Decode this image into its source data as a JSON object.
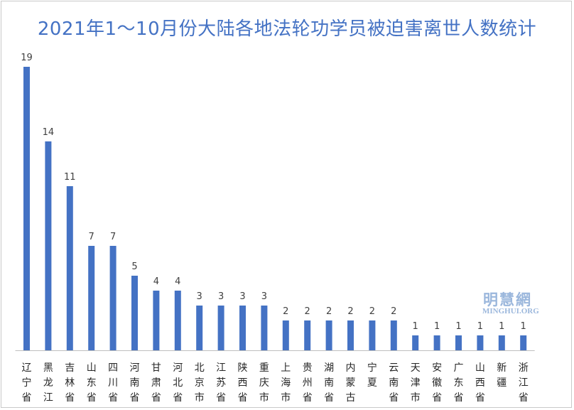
{
  "chart_data": {
    "type": "bar",
    "title": "2021年1～10月份大陆各地法轮功学员被迫害离世人数统计",
    "categories": [
      "辽宁省",
      "黑龙江",
      "吉林省",
      "山东省",
      "四川省",
      "河南省",
      "甘肃省",
      "河北省",
      "北京市",
      "江苏省",
      "陕西省",
      "重庆市",
      "上海市",
      "贵州省",
      "湖南省",
      "内蒙古",
      "宁夏",
      "云南省",
      "天津市",
      "安徽省",
      "广东省",
      "山西省",
      "新疆",
      "浙江省"
    ],
    "values": [
      19,
      14,
      11,
      7,
      7,
      5,
      4,
      4,
      3,
      3,
      3,
      3,
      2,
      2,
      2,
      2,
      2,
      2,
      1,
      1,
      1,
      1,
      1,
      1
    ],
    "ylim": [
      0,
      19
    ],
    "grid": false,
    "legend": "none",
    "bar_color": "#4472c4",
    "xlabel": "",
    "ylabel": ""
  },
  "watermark": {
    "cn": "明慧網",
    "en": "MINGHUI.ORG"
  }
}
